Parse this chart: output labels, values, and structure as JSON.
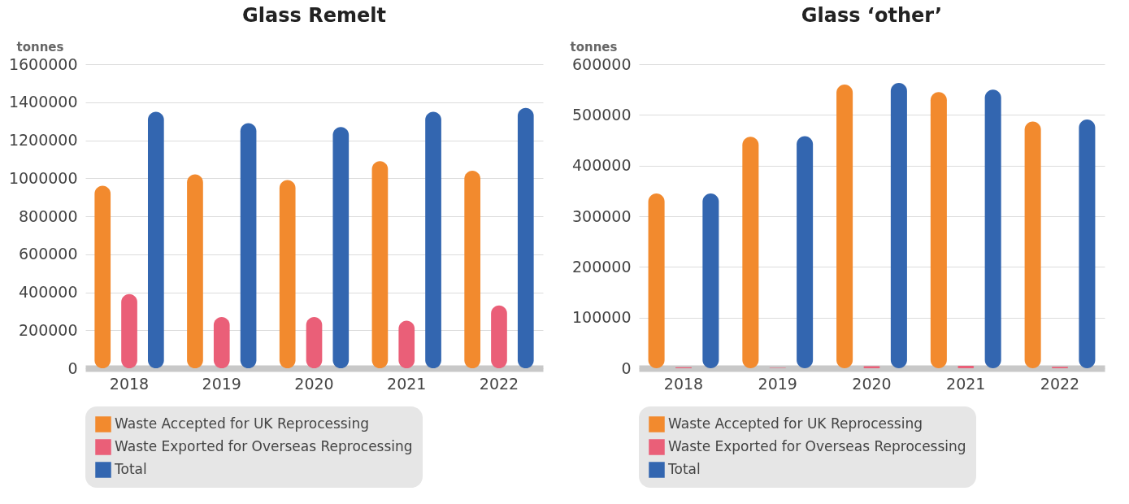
{
  "chart_data": [
    {
      "type": "bar",
      "title": "Glass Remelt",
      "ylabel": "tonnes",
      "categories": [
        "2018",
        "2019",
        "2020",
        "2021",
        "2022"
      ],
      "series": [
        {
          "name": "Waste Accepted for UK Reprocessing",
          "color": "#f28a2e",
          "values": [
            960000,
            1020000,
            990000,
            1090000,
            1040000
          ]
        },
        {
          "name": "Waste Exported for Overseas Reprocessing",
          "color": "#ea5f78",
          "values": [
            390000,
            270000,
            270000,
            250000,
            330000
          ]
        },
        {
          "name": "Total",
          "color": "#3366b0",
          "values": [
            1350000,
            1290000,
            1270000,
            1350000,
            1370000
          ]
        }
      ],
      "ylim": [
        0,
        1600000
      ],
      "yticks": [
        0,
        200000,
        400000,
        600000,
        800000,
        1000000,
        1200000,
        1400000,
        1600000
      ],
      "grid": "y",
      "legend": "bottom"
    },
    {
      "type": "bar",
      "title": "Glass ‘other’",
      "ylabel": "tonnes",
      "categories": [
        "2018",
        "2019",
        "2020",
        "2021",
        "2022"
      ],
      "series": [
        {
          "name": "Waste Accepted for UK Reprocessing",
          "color": "#f28a2e",
          "values": [
            345000,
            457000,
            560000,
            545000,
            487000
          ]
        },
        {
          "name": "Waste Exported for Overseas Reprocessing",
          "color": "#ea5f78",
          "values": [
            2000,
            1000,
            4000,
            5000,
            3000
          ]
        },
        {
          "name": "Total",
          "color": "#3366b0",
          "values": [
            345000,
            458000,
            563000,
            550000,
            491000
          ]
        }
      ],
      "ylim": [
        0,
        600000
      ],
      "yticks": [
        0,
        100000,
        200000,
        300000,
        400000,
        500000,
        600000
      ],
      "grid": "y",
      "legend": "bottom"
    }
  ]
}
